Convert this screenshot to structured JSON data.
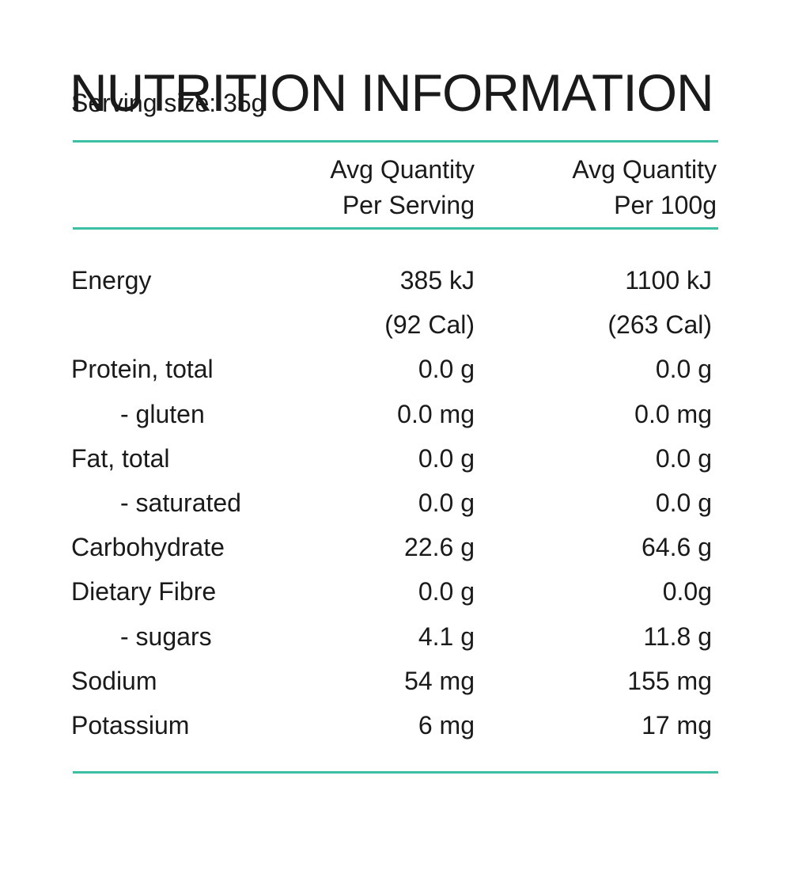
{
  "panel": {
    "title": "NUTRITION INFORMATION",
    "serving_size": "Serving size: 35g",
    "accent_color": "#3dbfa4"
  },
  "columns": {
    "serving": {
      "line1": "Avg Quantity",
      "line2": "Per Serving"
    },
    "per100g": {
      "line1": "Avg Quantity",
      "line2": "Per 100g"
    }
  },
  "rows": [
    {
      "label": "Energy",
      "serving": "385 kJ",
      "per100g": "1100 kJ",
      "indent": false
    },
    {
      "label": "",
      "serving": "(92 Cal)",
      "per100g": "(263 Cal)",
      "indent": false
    },
    {
      "label": "Protein, total",
      "serving": "0.0 g",
      "per100g": "0.0 g",
      "indent": false
    },
    {
      "label": "- gluten",
      "serving": "0.0 mg",
      "per100g": "0.0 mg",
      "indent": true
    },
    {
      "label": "Fat, total",
      "serving": "0.0 g",
      "per100g": "0.0 g",
      "indent": false
    },
    {
      "label": "- saturated",
      "serving": "0.0 g",
      "per100g": "0.0 g",
      "indent": true
    },
    {
      "label": "Carbohydrate",
      "serving": "22.6 g",
      "per100g": "64.6 g",
      "indent": false
    },
    {
      "label": "Dietary Fibre",
      "serving": "0.0 g",
      "per100g": "0.0g",
      "indent": false
    },
    {
      "label": "- sugars",
      "serving": "4.1 g",
      "per100g": "11.8 g",
      "indent": true
    },
    {
      "label": "Sodium",
      "serving": "54 mg",
      "per100g": "155 mg",
      "indent": false
    },
    {
      "label": "Potassium",
      "serving": "6 mg",
      "per100g": "17 mg",
      "indent": false
    }
  ]
}
